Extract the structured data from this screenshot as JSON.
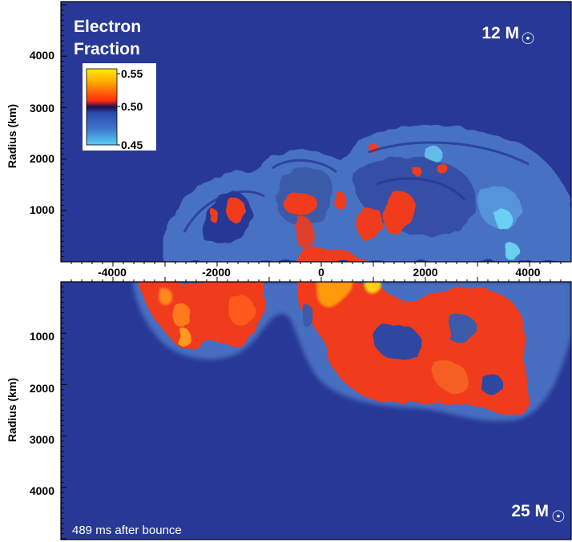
{
  "colorbar": {
    "title_line1": "Electron",
    "title_line2": "Fraction",
    "ticks": [
      "0.55",
      "0.50",
      "0.45"
    ],
    "colors": {
      "high": "#ffe600",
      "mid_high": "#ff3a1a",
      "mid": "#241a6a",
      "mid_low": "#3a5fb8",
      "low": "#53c4ee"
    }
  },
  "top_panel": {
    "mass_label": "12 M",
    "sun_symbol": "☉",
    "ylabel": "Radius (km)",
    "y_ticks": [
      "4000",
      "3000",
      "2000",
      "1000"
    ]
  },
  "x_axis": {
    "ticks": [
      "-4000",
      "-2000",
      "0",
      "2000",
      "4000"
    ]
  },
  "bottom_panel": {
    "mass_label": "25 M",
    "sun_symbol": "☉",
    "ylabel": "Radius (km)",
    "y_ticks": [
      "1000",
      "2000",
      "3000",
      "4000"
    ],
    "caption": "489 ms after bounce"
  },
  "colors": {
    "background": "#283896",
    "plume_blue": "#4a74c4",
    "plume_red": "#f03a1e",
    "plume_orange": "#ff7a1c"
  }
}
